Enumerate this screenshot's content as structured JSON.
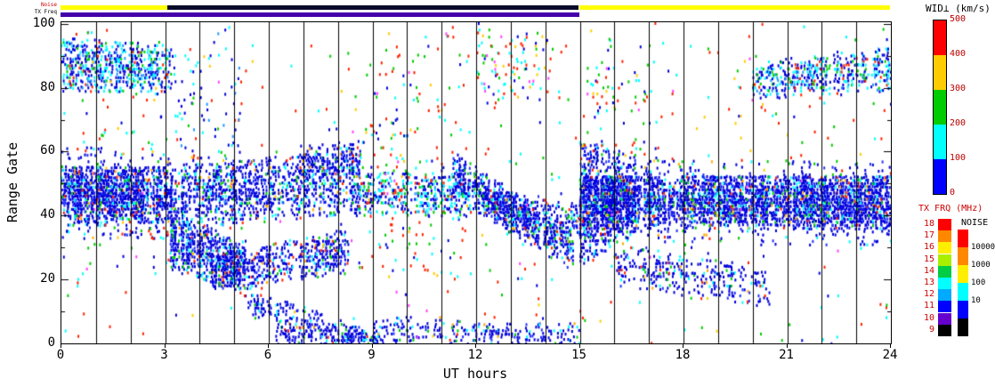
{
  "strips": {
    "noise_label": "Noise",
    "freq_label": "TX Freq",
    "noise_segments": [
      {
        "t0": 0.0,
        "t1": 3.1,
        "color": "#ffff00"
      },
      {
        "t0": 3.1,
        "t1": 15.0,
        "color": "#0a0a2a"
      },
      {
        "t0": 15.0,
        "t1": 24.0,
        "color": "#ffff00"
      }
    ],
    "freq_segments": [
      {
        "t0": 0.0,
        "t1": 15.0,
        "color": "#4400aa"
      },
      {
        "t0": 15.0,
        "t1": 24.0,
        "color": "#ffffff"
      }
    ]
  },
  "axes": {
    "xlabel": "UT hours",
    "ylabel": "Range Gate",
    "x_ticks": [
      "0",
      "3",
      "6",
      "9",
      "12",
      "15",
      "18",
      "21",
      "24"
    ],
    "x_tick_values": [
      0,
      3,
      6,
      9,
      12,
      15,
      18,
      21,
      24
    ],
    "y_ticks": [
      "0",
      "20",
      "40",
      "60",
      "80",
      "100"
    ],
    "y_tick_values": [
      0,
      20,
      40,
      60,
      80,
      100
    ]
  },
  "legend_wid": {
    "title": "WID⊥ (km/s)",
    "tick_labels": [
      "500",
      "400",
      "300",
      "200",
      "100",
      "0"
    ],
    "colors_top_to_bottom": [
      "#ff0000",
      "#ffcc00",
      "#00cc00",
      "#00ffff",
      "#0000ff"
    ]
  },
  "legend_txfrq": {
    "title": "TX FRQ (MHz)",
    "labels": [
      "18",
      "17",
      "16",
      "15",
      "14",
      "13",
      "12",
      "11",
      "10",
      "9"
    ],
    "colors": [
      "#ff0000",
      "#ff8800",
      "#ffee00",
      "#aaee00",
      "#00cc44",
      "#00ffff",
      "#00aaff",
      "#0000ff",
      "#6600cc",
      "#000000"
    ]
  },
  "legend_noise": {
    "title": "NOISE",
    "labels": [
      "10000",
      "1000",
      "100",
      "10"
    ],
    "colors": [
      "#ff0000",
      "#ff8800",
      "#ffee00",
      "#00ffff",
      "#0000ff",
      "#000000"
    ]
  },
  "chart_data": {
    "type": "heatmap",
    "title": "SuperDARN range-time spectral width plot",
    "xlabel": "UT hours",
    "ylabel": "Range Gate",
    "x_range": [
      0,
      24
    ],
    "y_range": [
      0,
      100.5
    ],
    "gridline_every_hours": 1,
    "x_tick_every_hours": 3,
    "color_scale": {
      "label": "WID⊥ (km/s)",
      "range": [
        0,
        500
      ]
    },
    "seed": 1337,
    "palettes": {
      "blue": {
        "colors": [
          "#0000dd",
          "#2233ff",
          "#00ffff",
          "#00cc00",
          "#ff2200",
          "#ffaa00"
        ],
        "weights": [
          0.7,
          0.12,
          0.08,
          0.05,
          0.03,
          0.02
        ]
      },
      "cyanblue": {
        "colors": [
          "#0000dd",
          "#00ffff",
          "#00cc00",
          "#2299ff",
          "#ff2200"
        ],
        "weights": [
          0.45,
          0.3,
          0.1,
          0.1,
          0.05
        ]
      },
      "noise": {
        "colors": [
          "#ff2200",
          "#00cc00",
          "#00ffff",
          "#0000dd",
          "#ffcc00",
          "#ff44ff"
        ],
        "weights": [
          0.28,
          0.2,
          0.22,
          0.15,
          0.1,
          0.05
        ]
      }
    },
    "bands": [
      {
        "t0": 0.0,
        "t1": 3.15,
        "g0": 87,
        "g1": 86,
        "w0": 8,
        "w1": 7,
        "d": 0.5,
        "p": "cyanblue"
      },
      {
        "t0": 0.0,
        "t1": 3.15,
        "g0": 47,
        "g1": 46,
        "w0": 8,
        "w1": 8,
        "d": 0.85,
        "p": "blue"
      },
      {
        "t0": 0.0,
        "t1": 3.15,
        "g0": 47,
        "g1": 46,
        "w0": 14,
        "w1": 13,
        "d": 0.2,
        "p": "blue"
      },
      {
        "t0": 0.0,
        "t1": 3.15,
        "g0": 60,
        "g1": 60,
        "w0": 40,
        "w1": 40,
        "d": 0.02,
        "p": "noise"
      },
      {
        "t0": 3.15,
        "t1": 5.3,
        "g0": 32,
        "g1": 24,
        "w0": 8,
        "w1": 7,
        "d": 0.75,
        "p": "blue"
      },
      {
        "t0": 3.15,
        "t1": 8.6,
        "g0": 46,
        "g1": 50,
        "w0": 9,
        "w1": 9,
        "d": 0.5,
        "p": "blue"
      },
      {
        "t0": 6.8,
        "t1": 8.6,
        "g0": 55,
        "g1": 58,
        "w0": 6,
        "w1": 5,
        "d": 0.45,
        "p": "blue"
      },
      {
        "t0": 4.3,
        "t1": 8.3,
        "g0": 22,
        "g1": 29,
        "w0": 5,
        "w1": 6,
        "d": 0.55,
        "p": "blue"
      },
      {
        "t0": 5.3,
        "t1": 8.8,
        "g0": 13,
        "g1": 2,
        "w0": 4,
        "w1": 2,
        "d": 0.4,
        "p": "blue"
      },
      {
        "t0": 6.2,
        "t1": 9.2,
        "g0": 3,
        "g1": 1,
        "w0": 3,
        "w1": 2,
        "d": 0.5,
        "p": "blue"
      },
      {
        "t0": 3.15,
        "t1": 5.2,
        "g0": 60,
        "g1": 60,
        "w0": 40,
        "w1": 40,
        "d": 0.05,
        "p": "cyanblue"
      },
      {
        "t0": 8.6,
        "t1": 11.8,
        "g0": 47,
        "g1": 46,
        "w0": 6,
        "w1": 6,
        "d": 0.45,
        "p": "cyanblue"
      },
      {
        "t0": 8.6,
        "t1": 11.8,
        "g0": 60,
        "g1": 60,
        "w0": 40,
        "w1": 40,
        "d": 0.035,
        "p": "noise"
      },
      {
        "t0": 9.0,
        "t1": 15.0,
        "g0": 4,
        "g1": 2,
        "w0": 4,
        "w1": 3,
        "d": 0.3,
        "p": "blue"
      },
      {
        "t0": 11.3,
        "t1": 14.8,
        "g0": 53,
        "g1": 29,
        "w0": 6,
        "w1": 6,
        "d": 0.7,
        "p": "blue"
      },
      {
        "t0": 12.2,
        "t1": 15.0,
        "g0": 44,
        "g1": 38,
        "w0": 4,
        "w1": 5,
        "d": 0.4,
        "p": "blue"
      },
      {
        "t0": 12.0,
        "t1": 14.2,
        "g0": 86,
        "g1": 88,
        "w0": 12,
        "w1": 10,
        "d": 0.1,
        "p": "noise"
      },
      {
        "t0": 15.0,
        "t1": 16.6,
        "g0": 44,
        "g1": 47,
        "w0": 19,
        "w1": 11,
        "d": 0.55,
        "p": "blue"
      },
      {
        "t0": 15.0,
        "t1": 24.0,
        "g0": 45,
        "g1": 44,
        "w0": 7,
        "w1": 8,
        "d": 0.85,
        "p": "blue"
      },
      {
        "t0": 15.0,
        "t1": 24.0,
        "g0": 45,
        "g1": 44,
        "w0": 12,
        "w1": 13,
        "d": 0.18,
        "p": "blue"
      },
      {
        "t0": 16.0,
        "t1": 20.5,
        "g0": 25,
        "g1": 17,
        "w0": 6,
        "w1": 5,
        "d": 0.3,
        "p": "blue"
      },
      {
        "t0": 20.0,
        "t1": 24.0,
        "g0": 82,
        "g1": 86,
        "w0": 5,
        "w1": 6,
        "d": 0.5,
        "p": "cyanblue"
      },
      {
        "t0": 15.2,
        "t1": 17.2,
        "g0": 75,
        "g1": 75,
        "w0": 22,
        "w1": 22,
        "d": 0.05,
        "p": "noise"
      },
      {
        "t0": 0.0,
        "t1": 24.0,
        "g0": 50,
        "g1": 50,
        "w0": 51,
        "w1": 51,
        "d": 0.013,
        "p": "noise"
      }
    ]
  }
}
